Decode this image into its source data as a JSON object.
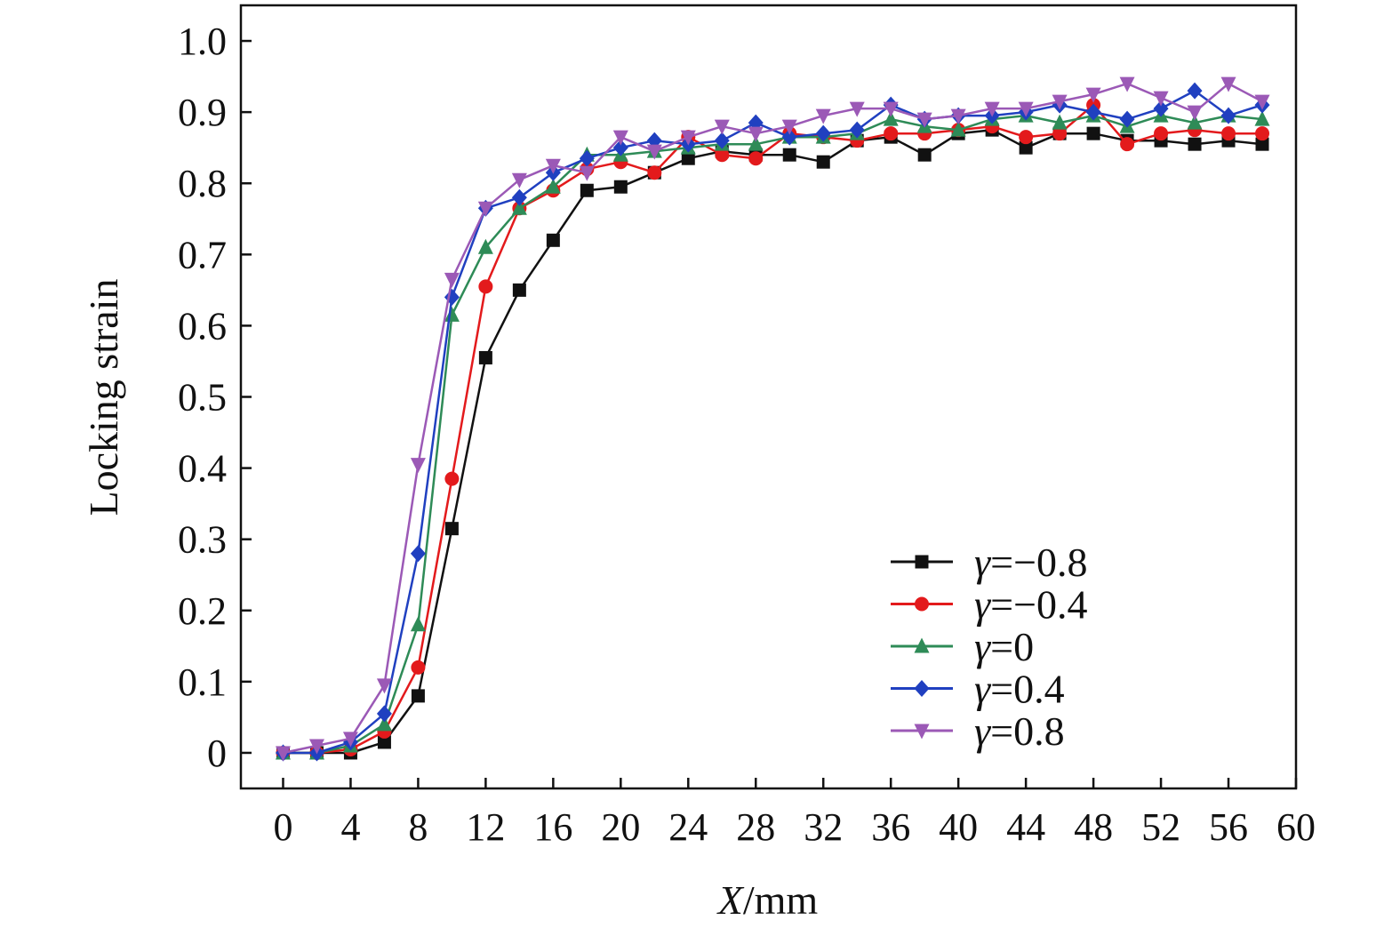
{
  "chart_data": {
    "type": "line",
    "xlabel": {
      "italic": "X",
      "rest": "/mm"
    },
    "ylabel": "Locking strain",
    "xlim": [
      -2.5,
      60
    ],
    "ylim": [
      -0.05,
      1.05
    ],
    "xticks": [
      "0",
      "4",
      "8",
      "12",
      "16",
      "20",
      "24",
      "28",
      "32",
      "36",
      "40",
      "44",
      "48",
      "52",
      "56",
      "60"
    ],
    "yticks": [
      "0",
      "0.1",
      "0.2",
      "0.3",
      "0.4",
      "0.5",
      "0.6",
      "0.7",
      "0.8",
      "0.9",
      "1.0"
    ],
    "legend_position": "bottom-right",
    "x": [
      0,
      2,
      4,
      6,
      8,
      10,
      12,
      14,
      16,
      18,
      20,
      22,
      24,
      26,
      28,
      30,
      32,
      34,
      36,
      38,
      40,
      42,
      44,
      46,
      48,
      50,
      52,
      54,
      56,
      58
    ],
    "series": [
      {
        "name": "γ=−0.8",
        "color": "#111111",
        "marker": "square",
        "values": [
          0,
          0,
          0,
          0.015,
          0.08,
          0.315,
          0.555,
          0.65,
          0.72,
          0.79,
          0.795,
          0.815,
          0.835,
          0.845,
          0.84,
          0.84,
          0.83,
          0.86,
          0.865,
          0.84,
          0.87,
          0.875,
          0.85,
          0.87,
          0.87,
          0.86,
          0.86,
          0.855,
          0.86,
          0.855
        ]
      },
      {
        "name": "γ=−0.4",
        "color": "#e31a1c",
        "marker": "circle",
        "values": [
          0,
          0,
          0.005,
          0.03,
          0.12,
          0.385,
          0.655,
          0.765,
          0.79,
          0.82,
          0.83,
          0.815,
          0.865,
          0.84,
          0.835,
          0.87,
          0.865,
          0.86,
          0.87,
          0.87,
          0.875,
          0.88,
          0.865,
          0.87,
          0.91,
          0.855,
          0.87,
          0.875,
          0.87,
          0.87
        ]
      },
      {
        "name": "γ=0",
        "color": "#2e8b57",
        "marker": "triangle-up",
        "values": [
          0,
          0,
          0.01,
          0.04,
          0.18,
          0.615,
          0.71,
          0.765,
          0.795,
          0.84,
          0.84,
          0.845,
          0.85,
          0.855,
          0.855,
          0.865,
          0.865,
          0.87,
          0.89,
          0.88,
          0.875,
          0.89,
          0.895,
          0.885,
          0.895,
          0.88,
          0.895,
          0.885,
          0.895,
          0.89
        ]
      },
      {
        "name": "γ=0.4",
        "color": "#2040c0",
        "marker": "diamond",
        "values": [
          0,
          0,
          0.015,
          0.055,
          0.28,
          0.64,
          0.765,
          0.78,
          0.815,
          0.835,
          0.85,
          0.86,
          0.855,
          0.86,
          0.885,
          0.865,
          0.87,
          0.875,
          0.91,
          0.89,
          0.895,
          0.895,
          0.9,
          0.91,
          0.9,
          0.89,
          0.905,
          0.93,
          0.895,
          0.91
        ]
      },
      {
        "name": "γ=0.8",
        "color": "#9b59b6",
        "marker": "triangle-down",
        "values": [
          0,
          0.01,
          0.02,
          0.095,
          0.405,
          0.665,
          0.765,
          0.805,
          0.825,
          0.815,
          0.865,
          0.845,
          0.865,
          0.88,
          0.87,
          0.88,
          0.895,
          0.905,
          0.905,
          0.89,
          0.895,
          0.905,
          0.905,
          0.915,
          0.925,
          0.94,
          0.92,
          0.9,
          0.94,
          0.915
        ]
      }
    ]
  }
}
